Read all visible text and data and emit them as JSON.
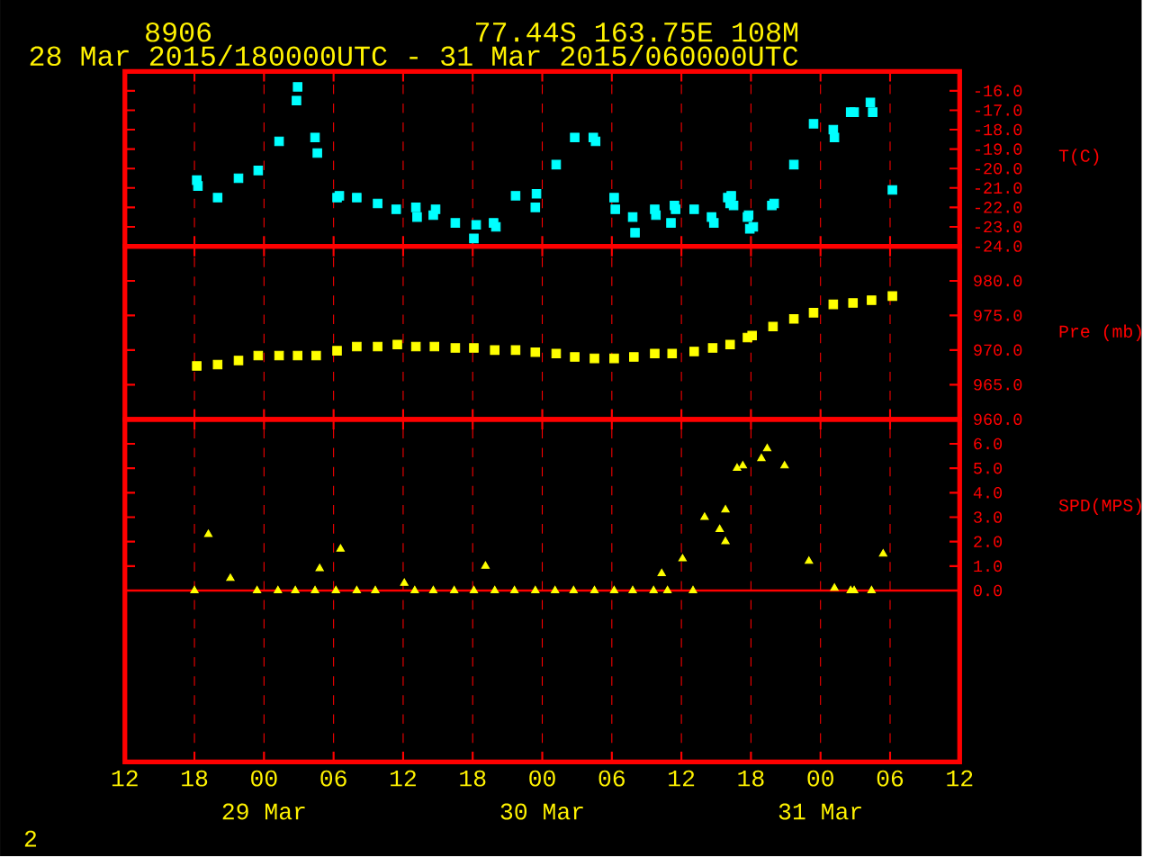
{
  "chart_data": [
    {
      "type": "scatter",
      "title": "8906",
      "subtitle": "28 Mar 2015/180000UTC - 31 Mar 2015/060000UTC",
      "annotations": [
        "77.44S   163.75E   108M"
      ],
      "ylabel": "T(C)",
      "color": "#00ffff",
      "marker": "square",
      "grid": "x",
      "tick_labels": "y",
      "xlim": [
        12,
        84
      ],
      "xticks": [
        {
          "value": 12,
          "label": null
        },
        {
          "value": 18,
          "label": null
        },
        {
          "value": 24,
          "label": null
        },
        {
          "value": 30,
          "label": null
        },
        {
          "value": 36,
          "label": null
        },
        {
          "value": 42,
          "label": null
        },
        {
          "value": 48,
          "label": null
        },
        {
          "value": 54,
          "label": null
        },
        {
          "value": 60,
          "label": null
        },
        {
          "value": 66,
          "label": null
        },
        {
          "value": 72,
          "label": null
        },
        {
          "value": 78,
          "label": null
        },
        {
          "value": 84,
          "label": null
        }
      ],
      "ylim": [
        -24,
        -15
      ],
      "yticks": [
        {
          "value": -16,
          "label": "-16.0"
        },
        {
          "value": -17,
          "label": "-17.0"
        },
        {
          "value": -18,
          "label": "-18.0"
        },
        {
          "value": -19,
          "label": "-19.0"
        },
        {
          "value": -20,
          "label": "-20.0"
        },
        {
          "value": -21,
          "label": "-21.0"
        },
        {
          "value": -22,
          "label": "-22.0"
        },
        {
          "value": -23,
          "label": "-23.0"
        },
        {
          "value": -24,
          "label": "-24.0"
        }
      ],
      "x": [
        18.2,
        18.3,
        20.0,
        21.8,
        23.5,
        25.3,
        26.8,
        26.9,
        28.4,
        28.6,
        30.3,
        30.5,
        32.0,
        33.8,
        35.4,
        37.1,
        37.2,
        38.6,
        38.8,
        40.5,
        42.3,
        42.1,
        43.8,
        44.0,
        45.7,
        47.5,
        47.4,
        49.2,
        50.8,
        52.4,
        52.6,
        54.2,
        54.3,
        55.8,
        56.0,
        57.7,
        57.8,
        59.1,
        59.4,
        59.5,
        61.1,
        62.6,
        62.8,
        64.0,
        64.3,
        64.2,
        64.5,
        65.7,
        65.8,
        65.9,
        66.2,
        67.8,
        68.0,
        69.7,
        71.4,
        73.1,
        73.2,
        74.6,
        74.9,
        76.3,
        76.5,
        78.2
      ],
      "values": [
        -20.6,
        -20.9,
        -21.5,
        -20.5,
        -20.1,
        -18.6,
        -16.5,
        -15.8,
        -18.4,
        -19.2,
        -21.5,
        -21.4,
        -21.5,
        -21.8,
        -22.1,
        -22.0,
        -22.5,
        -22.4,
        -22.1,
        -22.8,
        -22.9,
        -23.6,
        -22.8,
        -23.0,
        -21.4,
        -21.3,
        -22.0,
        -19.8,
        -18.4,
        -18.4,
        -18.6,
        -21.5,
        -22.1,
        -22.5,
        -23.3,
        -22.1,
        -22.4,
        -22.8,
        -21.9,
        -22.1,
        -22.1,
        -22.5,
        -22.8,
        -21.5,
        -21.4,
        -21.8,
        -21.9,
        -22.5,
        -22.4,
        -23.1,
        -23.0,
        -21.9,
        -21.8,
        -19.8,
        -17.7,
        -18.0,
        -18.4,
        -17.1,
        -17.1,
        -16.6,
        -17.1,
        -21.1
      ]
    },
    {
      "type": "scatter",
      "ylabel": "Pre (mb)",
      "color": "#ffff00",
      "marker": "square",
      "grid": "x",
      "tick_labels": "y",
      "xlim": [
        12,
        84
      ],
      "xticks": [
        {
          "value": 12,
          "label": null
        },
        {
          "value": 18,
          "label": null
        },
        {
          "value": 24,
          "label": null
        },
        {
          "value": 30,
          "label": null
        },
        {
          "value": 36,
          "label": null
        },
        {
          "value": 42,
          "label": null
        },
        {
          "value": 48,
          "label": null
        },
        {
          "value": 54,
          "label": null
        },
        {
          "value": 60,
          "label": null
        },
        {
          "value": 66,
          "label": null
        },
        {
          "value": 72,
          "label": null
        },
        {
          "value": 78,
          "label": null
        },
        {
          "value": 84,
          "label": null
        }
      ],
      "ylim": [
        960,
        985
      ],
      "yticks": [
        {
          "value": 960,
          "label": "960.0"
        },
        {
          "value": 965,
          "label": "965.0"
        },
        {
          "value": 970,
          "label": "970.0"
        },
        {
          "value": 975,
          "label": "975.0"
        },
        {
          "value": 980,
          "label": "980.0"
        }
      ],
      "x": [
        18.2,
        20.0,
        21.8,
        23.5,
        25.3,
        26.9,
        28.5,
        30.3,
        32.0,
        33.8,
        35.5,
        37.1,
        38.7,
        40.5,
        42.1,
        43.9,
        45.7,
        47.4,
        49.2,
        50.8,
        52.5,
        54.2,
        55.9,
        57.7,
        59.2,
        61.1,
        62.7,
        64.2,
        65.7,
        66.1,
        67.9,
        69.7,
        71.4,
        73.1,
        74.8,
        76.4,
        78.2
      ],
      "values": [
        967.7,
        967.9,
        968.5,
        969.2,
        969.2,
        969.2,
        969.2,
        969.9,
        970.5,
        970.5,
        970.8,
        970.5,
        970.5,
        970.3,
        970.3,
        970.0,
        970.0,
        969.7,
        969.5,
        969.0,
        968.8,
        968.8,
        969.0,
        969.5,
        969.5,
        969.8,
        970.3,
        970.8,
        971.8,
        972.1,
        973.4,
        974.5,
        975.4,
        976.6,
        976.8,
        977.2,
        977.8
      ]
    },
    {
      "type": "scatter",
      "ylabel": "SPD(MPS)",
      "color": "#ffff00",
      "marker": "triangle",
      "grid": "x",
      "annotations": [
        "29 Mar",
        "30 Mar",
        "31 Mar",
        "2"
      ],
      "xlim": [
        12,
        84
      ],
      "xticks": [
        12,
        18,
        {
          "value": 24,
          "label": "00"
        },
        {
          "value": 30,
          "label": "06"
        },
        {
          "value": 36,
          "label": "12"
        },
        {
          "value": 42,
          "label": "18"
        },
        {
          "value": 48,
          "label": "00"
        },
        {
          "value": 54,
          "label": "06"
        },
        {
          "value": 60,
          "label": "12"
        },
        {
          "value": 66,
          "label": "18"
        },
        {
          "value": 72,
          "label": "00"
        },
        {
          "value": 78,
          "label": "06"
        },
        {
          "value": 84,
          "label": "12"
        }
      ],
      "ylim": [
        -7,
        7
      ],
      "yticks": [
        {
          "value": 0,
          "label": "0.0"
        },
        {
          "value": 1,
          "label": "1.0"
        },
        {
          "value": 2,
          "label": "2.0"
        },
        {
          "value": 3,
          "label": "3.0"
        },
        {
          "value": 4,
          "label": "4.0"
        },
        {
          "value": 5,
          "label": "5.0"
        },
        {
          "value": 6,
          "label": "6.0"
        }
      ],
      "ref_lines": [
        {
          "axis": "y",
          "value": 0,
          "color": "#ff0000"
        }
      ],
      "x": [
        19.2,
        21.1,
        28.8,
        30.6,
        36.1,
        43.1,
        58.3,
        60.1,
        62.0,
        63.3,
        63.8,
        63.8,
        64.8,
        65.3,
        66.9,
        67.4,
        68.9,
        71.0,
        73.2,
        77.4,
        18.0,
        23.4,
        25.2,
        26.7,
        28.4,
        30.2,
        32.0,
        33.6,
        37.0,
        38.6,
        40.4,
        42.1,
        43.9,
        45.6,
        47.4,
        49.1,
        50.7,
        52.5,
        54.2,
        55.8,
        57.6,
        58.8,
        61.0,
        74.6,
        74.9,
        76.4
      ],
      "values": [
        2.3,
        0.5,
        0.9,
        1.7,
        0.3,
        1.0,
        0.7,
        1.3,
        3.0,
        2.5,
        2.0,
        3.3,
        5.0,
        5.1,
        5.4,
        5.8,
        5.1,
        1.2,
        0.1,
        1.5,
        0,
        0,
        0,
        0,
        0,
        0,
        0,
        0,
        0,
        0,
        0,
        0,
        0,
        0,
        0,
        0,
        0,
        0,
        0,
        0,
        0,
        0,
        0,
        0,
        0,
        0
      ]
    }
  ]
}
